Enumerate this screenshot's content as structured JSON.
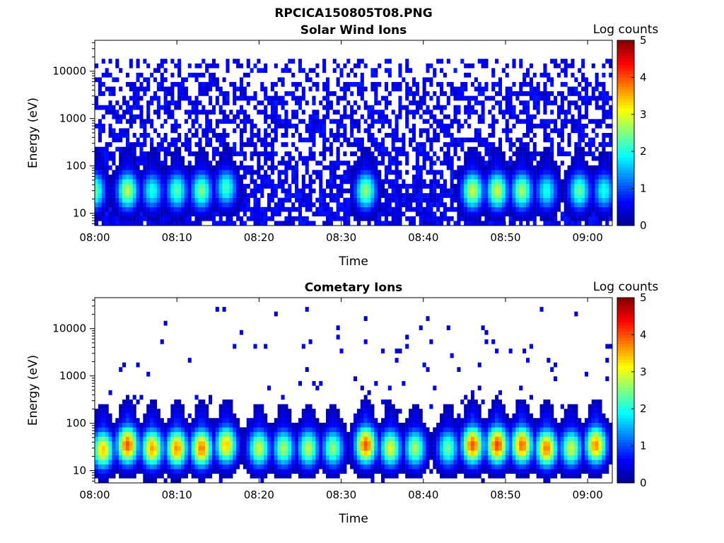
{
  "figure": {
    "title": "RPCICA150805T08.PNG"
  },
  "colorbar": {
    "label": "Log counts",
    "min": 0,
    "max": 5,
    "ticks": [
      "0",
      "1",
      "2",
      "3",
      "4",
      "5"
    ],
    "colormap": [
      "#00008f",
      "#0000ff",
      "#0080ff",
      "#00ffff",
      "#80ff80",
      "#ffff00",
      "#ff8000",
      "#ff0000",
      "#800000"
    ]
  },
  "chart_data": [
    {
      "type": "heatmap",
      "title": "Solar Wind Ions",
      "xlabel": "Time",
      "ylabel": "Energy (eV)",
      "yscale": "log",
      "xlim": [
        "08:00",
        "09:03"
      ],
      "ylim": [
        5.5,
        45000
      ],
      "xticks": [
        "08:00",
        "08:10",
        "08:20",
        "08:30",
        "08:40",
        "08:50",
        "09:00"
      ],
      "yticks": [
        "10",
        "100",
        "1000",
        "10000"
      ],
      "value_label": "Log counts",
      "value_range": [
        0,
        5
      ],
      "background_noise": {
        "energy_range_eV": [
          5.5,
          20000
        ],
        "level": 0.5,
        "density": 0.55
      },
      "bursts": [
        {
          "time": "08:00",
          "energy_eV": 30,
          "peak": 2.4
        },
        {
          "time": "08:04",
          "energy_eV": 30,
          "peak": 2.8
        },
        {
          "time": "08:07",
          "energy_eV": 30,
          "peak": 2.0
        },
        {
          "time": "08:10",
          "energy_eV": 30,
          "peak": 2.3
        },
        {
          "time": "08:13",
          "energy_eV": 30,
          "peak": 2.5
        },
        {
          "time": "08:16",
          "energy_eV": 35,
          "peak": 2.2
        },
        {
          "time": "08:33",
          "energy_eV": 30,
          "peak": 2.6
        },
        {
          "time": "08:46",
          "energy_eV": 30,
          "peak": 2.9
        },
        {
          "time": "08:49",
          "energy_eV": 30,
          "peak": 2.9
        },
        {
          "time": "08:52",
          "energy_eV": 30,
          "peak": 2.7
        },
        {
          "time": "08:55",
          "energy_eV": 30,
          "peak": 2.0
        },
        {
          "time": "08:59",
          "energy_eV": 30,
          "peak": 2.4
        },
        {
          "time": "09:02",
          "energy_eV": 30,
          "peak": 2.0
        }
      ]
    },
    {
      "type": "heatmap",
      "title": "Cometary Ions",
      "xlabel": "Time",
      "ylabel": "Energy (eV)",
      "yscale": "log",
      "xlim": [
        "08:00",
        "09:03"
      ],
      "ylim": [
        5.5,
        45000
      ],
      "xticks": [
        "08:00",
        "08:10",
        "08:20",
        "08:30",
        "08:40",
        "08:50",
        "09:00"
      ],
      "yticks": [
        "10",
        "100",
        "1000",
        "10000"
      ],
      "value_label": "Log counts",
      "value_range": [
        0,
        5
      ],
      "background_noise": {
        "energy_range_eV": [
          5.5,
          30000
        ],
        "level": 0.4,
        "density": 0.03
      },
      "bursts": [
        {
          "time": "08:01",
          "energy_eV": 28,
          "peak": 3.4
        },
        {
          "time": "08:04",
          "energy_eV": 35,
          "peak": 4.0
        },
        {
          "time": "08:07",
          "energy_eV": 30,
          "peak": 3.6
        },
        {
          "time": "08:10",
          "energy_eV": 30,
          "peak": 3.7
        },
        {
          "time": "08:13",
          "energy_eV": 30,
          "peak": 3.8
        },
        {
          "time": "08:16",
          "energy_eV": 35,
          "peak": 3.4
        },
        {
          "time": "08:20",
          "energy_eV": 30,
          "peak": 2.9
        },
        {
          "time": "08:23",
          "energy_eV": 30,
          "peak": 2.7
        },
        {
          "time": "08:26",
          "energy_eV": 30,
          "peak": 2.8
        },
        {
          "time": "08:29",
          "energy_eV": 30,
          "peak": 2.6
        },
        {
          "time": "08:33",
          "energy_eV": 35,
          "peak": 4.0
        },
        {
          "time": "08:36",
          "energy_eV": 30,
          "peak": 3.0
        },
        {
          "time": "08:39",
          "energy_eV": 30,
          "peak": 2.7
        },
        {
          "time": "08:43",
          "energy_eV": 30,
          "peak": 2.4
        },
        {
          "time": "08:46",
          "energy_eV": 35,
          "peak": 4.0
        },
        {
          "time": "08:49",
          "energy_eV": 35,
          "peak": 4.1
        },
        {
          "time": "08:52",
          "energy_eV": 35,
          "peak": 3.9
        },
        {
          "time": "08:55",
          "energy_eV": 30,
          "peak": 3.8
        },
        {
          "time": "08:58",
          "energy_eV": 30,
          "peak": 2.9
        },
        {
          "time": "09:01",
          "energy_eV": 35,
          "peak": 3.7
        }
      ]
    }
  ]
}
